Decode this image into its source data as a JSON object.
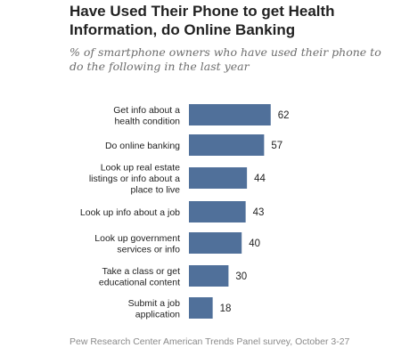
{
  "title_lines": [
    "Have Used Their Phone to get Health",
    "Information, do Online Banking"
  ],
  "subtitle_lines": [
    "% of smartphone owners who have used their phone to",
    "do the following in the last year"
  ],
  "source": "Pew Research Center American Trends Panel survey, October 3-27",
  "colors": {
    "bar": "#50709a",
    "label": "#222222",
    "value": "#222222"
  },
  "chart_data": {
    "type": "bar",
    "orientation": "horizontal",
    "categories": [
      [
        "Get info about a",
        "health condition"
      ],
      [
        "Do online banking"
      ],
      [
        "Look up real estate",
        "listings or info about a",
        "place to live"
      ],
      [
        "Look up info about a job"
      ],
      [
        "Look up government",
        "services or info"
      ],
      [
        "Take a class or get",
        "educational content"
      ],
      [
        "Submit a job",
        "application"
      ]
    ],
    "values": [
      62,
      57,
      44,
      43,
      40,
      30,
      18
    ],
    "xlim": [
      0,
      100
    ],
    "grid": false,
    "legend": "none"
  }
}
